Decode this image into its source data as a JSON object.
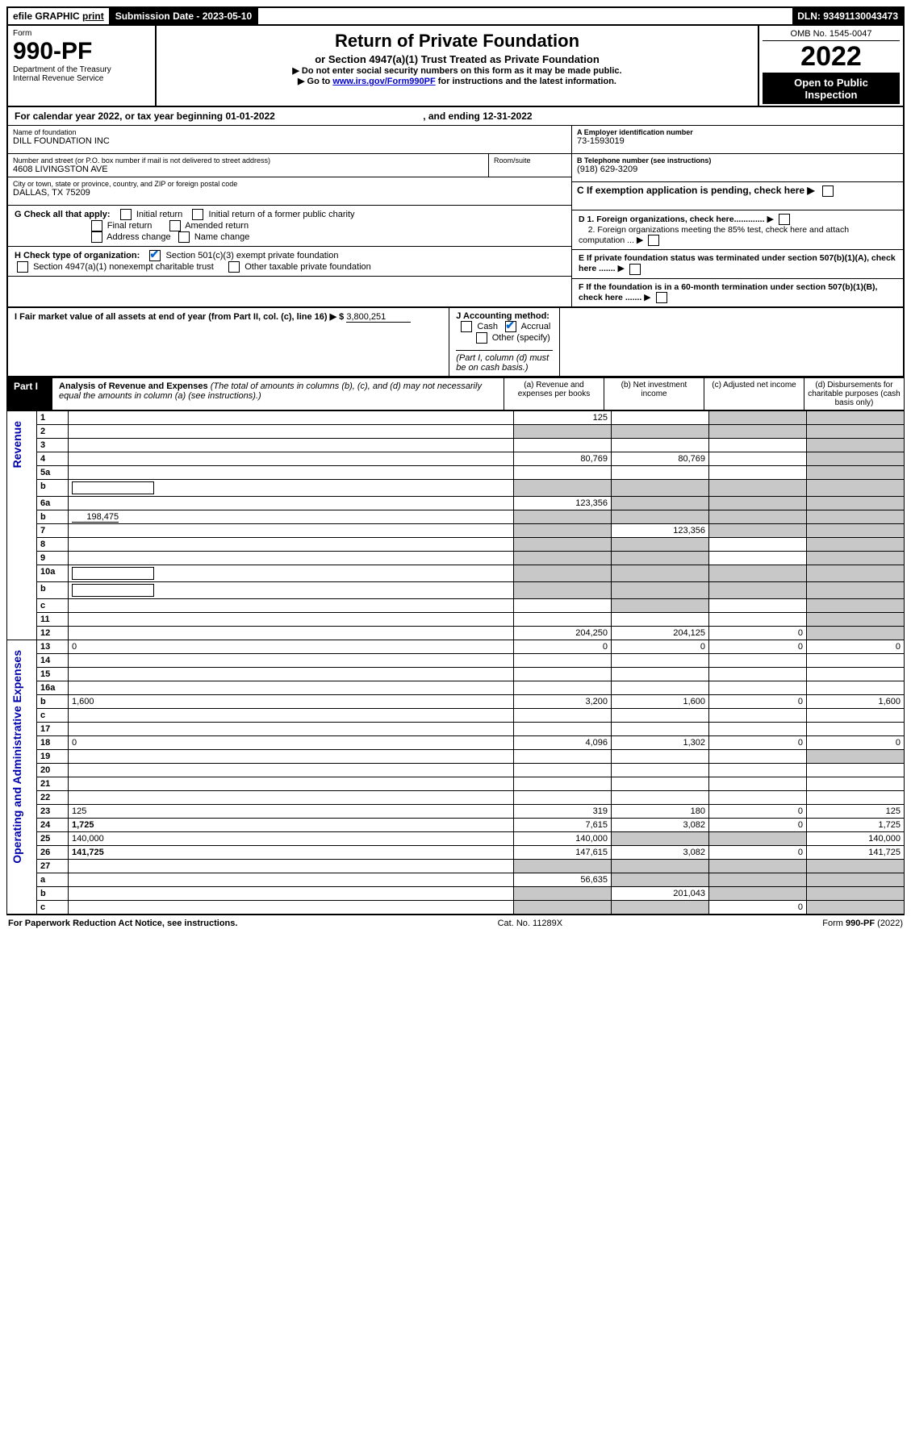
{
  "topbar": {
    "efile": "efile",
    "graphic": "GRAPHIC",
    "print": "print",
    "sub_date_label": "Submission Date - ",
    "sub_date": "2023-05-10",
    "dln_label": "DLN: ",
    "dln": "93491130043473"
  },
  "header": {
    "form_label": "Form",
    "form_no": "990-PF",
    "dept1": "Department of the Treasury",
    "dept2": "Internal Revenue Service",
    "title": "Return of Private Foundation",
    "subtitle": "or Section 4947(a)(1) Trust Treated as Private Foundation",
    "inst1": "▶ Do not enter social security numbers on this form as it may be made public.",
    "inst2_pre": "▶ Go to ",
    "inst2_link": "www.irs.gov/Form990PF",
    "inst2_post": " for instructions and the latest information.",
    "omb": "OMB No. 1545-0047",
    "year": "2022",
    "otp1": "Open to Public",
    "otp2": "Inspection"
  },
  "calyear": {
    "pre": "For calendar year 2022, or tax year beginning ",
    "begin": "01-01-2022",
    "mid": ", and ending ",
    "end": "12-31-2022"
  },
  "entity": {
    "name_label": "Name of foundation",
    "name": "DILL FOUNDATION INC",
    "addr_label": "Number and street (or P.O. box number if mail is not delivered to street address)",
    "addr": "4608 LIVINGSTON AVE",
    "room_label": "Room/suite",
    "city_label": "City or town, state or province, country, and ZIP or foreign postal code",
    "city": "DALLAS, TX  75209",
    "a_label": "A Employer identification number",
    "ein": "73-1593019",
    "b_label": "B Telephone number (see instructions)",
    "phone": "(918) 629-3209",
    "c_label": "C If exemption application is pending, check here ▶"
  },
  "checks": {
    "g_label": "G Check all that apply:",
    "g_opts": [
      "Initial return",
      "Initial return of a former public charity",
      "Final return",
      "Amended return",
      "Address change",
      "Name change"
    ],
    "h_label": "H Check type of organization:",
    "h1": "Section 501(c)(3) exempt private foundation",
    "h2": "Section 4947(a)(1) nonexempt charitable trust",
    "h3": "Other taxable private foundation",
    "i_label": "I Fair market value of all assets at end of year (from Part II, col. (c), line 16) ▶ $",
    "i_val": "3,800,251",
    "j_label": "J Accounting method:",
    "j_cash": "Cash",
    "j_accrual": "Accrual",
    "j_other": "Other (specify)",
    "j_note": "(Part I, column (d) must be on cash basis.)",
    "d1": "D 1. Foreign organizations, check here.............",
    "d2": "2. Foreign organizations meeting the 85% test, check here and attach computation ...",
    "e": "E  If private foundation status was terminated under section 507(b)(1)(A), check here .......",
    "f": "F  If the foundation is in a 60-month termination under section 507(b)(1)(B), check here .......",
    "arrow": "▶"
  },
  "part1": {
    "label": "Part I",
    "title": "Analysis of Revenue and Expenses",
    "note": "(The total of amounts in columns (b), (c), and (d) may not necessarily equal the amounts in column (a) (see instructions).)",
    "col_a": "(a)  Revenue and expenses per books",
    "col_b": "(b)  Net investment income",
    "col_c": "(c)  Adjusted net income",
    "col_d": "(d)  Disbursements for charitable purposes (cash basis only)"
  },
  "sections": {
    "revenue": "Revenue",
    "opex": "Operating and Administrative Expenses"
  },
  "rows": [
    {
      "n": "1",
      "d": "",
      "a": "125",
      "b": "",
      "c": "",
      "shade_c": true,
      "shade_d": true
    },
    {
      "n": "2",
      "d": "",
      "a": "",
      "b": "",
      "c": "",
      "shade_all": true
    },
    {
      "n": "3",
      "d": "",
      "a": "",
      "b": "",
      "c": "",
      "shade_d": true
    },
    {
      "n": "4",
      "d": "",
      "a": "80,769",
      "b": "80,769",
      "c": "",
      "shade_d": true
    },
    {
      "n": "5a",
      "d": "",
      "a": "",
      "b": "",
      "c": "",
      "shade_d": true
    },
    {
      "n": "b",
      "d": "",
      "a": "",
      "b": "",
      "c": "",
      "shade_all": true,
      "inline_box": true
    },
    {
      "n": "6a",
      "d": "",
      "a": "123,356",
      "b": "",
      "c": "",
      "shade_b": true,
      "shade_c": true,
      "shade_d": true
    },
    {
      "n": "b",
      "d": "",
      "a": "",
      "b": "",
      "c": "",
      "inline_val": "198,475",
      "shade_all": true
    },
    {
      "n": "7",
      "d": "",
      "a": "",
      "b": "123,356",
      "c": "",
      "shade_a": true,
      "shade_c": true,
      "shade_d": true
    },
    {
      "n": "8",
      "d": "",
      "a": "",
      "b": "",
      "c": "",
      "shade_a": true,
      "shade_b": true,
      "shade_d": true
    },
    {
      "n": "9",
      "d": "",
      "a": "",
      "b": "",
      "c": "",
      "shade_a": true,
      "shade_b": true,
      "shade_d": true
    },
    {
      "n": "10a",
      "d": "",
      "a": "",
      "b": "",
      "c": "",
      "shade_all": true,
      "inline_box": true
    },
    {
      "n": "b",
      "d": "",
      "a": "",
      "b": "",
      "c": "",
      "shade_all": true,
      "inline_box": true
    },
    {
      "n": "c",
      "d": "",
      "a": "",
      "b": "",
      "c": "",
      "shade_b": true,
      "shade_d": true
    },
    {
      "n": "11",
      "d": "",
      "a": "",
      "b": "",
      "c": "",
      "shade_d": true
    },
    {
      "n": "12",
      "d": "",
      "a": "204,250",
      "b": "204,125",
      "c": "0",
      "bold": true,
      "shade_d": true
    },
    {
      "n": "13",
      "d": "0",
      "a": "0",
      "b": "0",
      "c": "0"
    },
    {
      "n": "14",
      "d": "",
      "a": "",
      "b": "",
      "c": ""
    },
    {
      "n": "15",
      "d": "",
      "a": "",
      "b": "",
      "c": ""
    },
    {
      "n": "16a",
      "d": "",
      "a": "",
      "b": "",
      "c": ""
    },
    {
      "n": "b",
      "d": "1,600",
      "a": "3,200",
      "b": "1,600",
      "c": "0"
    },
    {
      "n": "c",
      "d": "",
      "a": "",
      "b": "",
      "c": ""
    },
    {
      "n": "17",
      "d": "",
      "a": "",
      "b": "",
      "c": ""
    },
    {
      "n": "18",
      "d": "0",
      "a": "4,096",
      "b": "1,302",
      "c": "0"
    },
    {
      "n": "19",
      "d": "",
      "a": "",
      "b": "",
      "c": "",
      "shade_d": true
    },
    {
      "n": "20",
      "d": "",
      "a": "",
      "b": "",
      "c": ""
    },
    {
      "n": "21",
      "d": "",
      "a": "",
      "b": "",
      "c": ""
    },
    {
      "n": "22",
      "d": "",
      "a": "",
      "b": "",
      "c": ""
    },
    {
      "n": "23",
      "d": "125",
      "a": "319",
      "b": "180",
      "c": "0"
    },
    {
      "n": "24",
      "d": "1,725",
      "a": "7,615",
      "b": "3,082",
      "c": "0",
      "bold": true
    },
    {
      "n": "25",
      "d": "140,000",
      "a": "140,000",
      "b": "",
      "c": "",
      "shade_b": true,
      "shade_c": true
    },
    {
      "n": "26",
      "d": "141,725",
      "a": "147,615",
      "b": "3,082",
      "c": "0",
      "bold": true
    },
    {
      "n": "27",
      "d": "",
      "a": "",
      "b": "",
      "c": "",
      "shade_all": true
    },
    {
      "n": "a",
      "d": "",
      "a": "56,635",
      "b": "",
      "c": "",
      "bold": true,
      "shade_b": true,
      "shade_c": true,
      "shade_d": true
    },
    {
      "n": "b",
      "d": "",
      "a": "",
      "b": "201,043",
      "c": "",
      "bold": true,
      "shade_a": true,
      "shade_c": true,
      "shade_d": true
    },
    {
      "n": "c",
      "d": "",
      "a": "",
      "b": "",
      "c": "0",
      "bold": true,
      "shade_a": true,
      "shade_b": true,
      "shade_d": true
    }
  ],
  "footer": {
    "left": "For Paperwork Reduction Act Notice, see instructions.",
    "mid": "Cat. No. 11289X",
    "right": "Form 990-PF (2022)"
  }
}
